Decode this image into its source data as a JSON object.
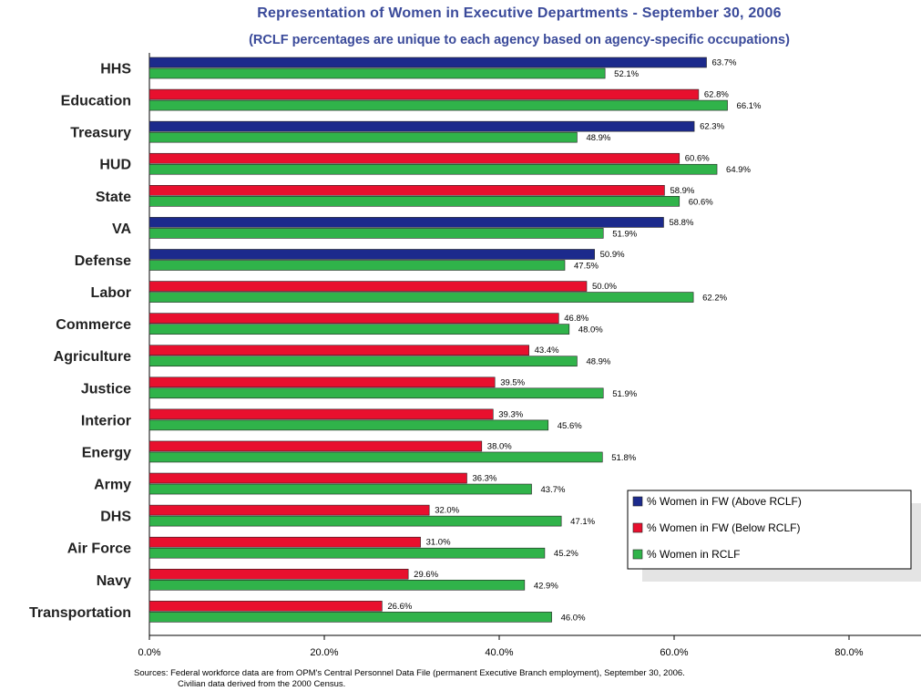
{
  "chart_data": {
    "type": "bar",
    "orientation": "horizontal",
    "title": "Representation of Women in Executive Departments - September 30, 2006",
    "subtitle": "(RCLF percentages are unique to each agency based on agency-specific occupations)",
    "xlim": [
      0,
      80
    ],
    "xticks": [
      "0.0%",
      "20.0%",
      "40.0%",
      "60.0%",
      "80.0%"
    ],
    "grid": false,
    "legend_position": "bottom-right",
    "colors": {
      "above": "#1c2a8c",
      "below": "#e8102e",
      "rclf": "#30b34a"
    },
    "legend": [
      {
        "key": "above",
        "label": "% Women in FW (Above RCLF)"
      },
      {
        "key": "below",
        "label": "% Women in FW  (Below RCLF)"
      },
      {
        "key": "rclf",
        "label": "% Women in RCLF"
      }
    ],
    "categories": [
      "HHS",
      "Education",
      "Treasury",
      "HUD",
      "State",
      "VA",
      "Defense",
      "Labor",
      "Commerce",
      "Agriculture",
      "Justice",
      "Interior",
      "Energy",
      "Army",
      "DHS",
      "Air Force",
      "Navy",
      "Transportation"
    ],
    "fw_values": [
      63.7,
      62.8,
      62.3,
      60.6,
      58.9,
      58.8,
      50.9,
      50.0,
      46.8,
      43.4,
      39.5,
      39.3,
      38.0,
      36.3,
      32.0,
      31.0,
      29.6,
      26.6
    ],
    "fw_labels": [
      "63.7%",
      "62.8%",
      "62.3%",
      "60.6%",
      "58.9%",
      "58.8%",
      "50.9%",
      "50.0%",
      "46.8%",
      "43.4%",
      "39.5%",
      "39.3%",
      "38.0%",
      "36.3%",
      "32.0%",
      "31.0%",
      "29.6%",
      "26.6%"
    ],
    "fw_status": [
      "above",
      "below",
      "above",
      "below",
      "below",
      "above",
      "above",
      "below",
      "below",
      "below",
      "below",
      "below",
      "below",
      "below",
      "below",
      "below",
      "below",
      "below"
    ],
    "rclf_values": [
      52.1,
      66.1,
      48.9,
      64.9,
      60.6,
      51.9,
      47.5,
      62.2,
      48.0,
      48.9,
      51.9,
      45.6,
      51.8,
      43.7,
      47.1,
      45.2,
      42.9,
      46.0
    ],
    "rclf_labels": [
      "52.1%",
      "66.1%",
      "48.9%",
      "64.9%",
      "60.6%",
      "51.9%",
      "47.5%",
      "62.2%",
      "48.0%",
      "48.9%",
      "51.9%",
      "45.6%",
      "51.8%",
      "43.7%",
      "47.1%",
      "45.2%",
      "42.9%",
      "46.0%"
    ]
  },
  "source_note": {
    "line1": "Sources: Federal workforce data are from OPM's Central Personnel Data File (permanent Executive Branch employment), September 30, 2006.",
    "line2": "Civilian data derived from the 2000 Census."
  }
}
